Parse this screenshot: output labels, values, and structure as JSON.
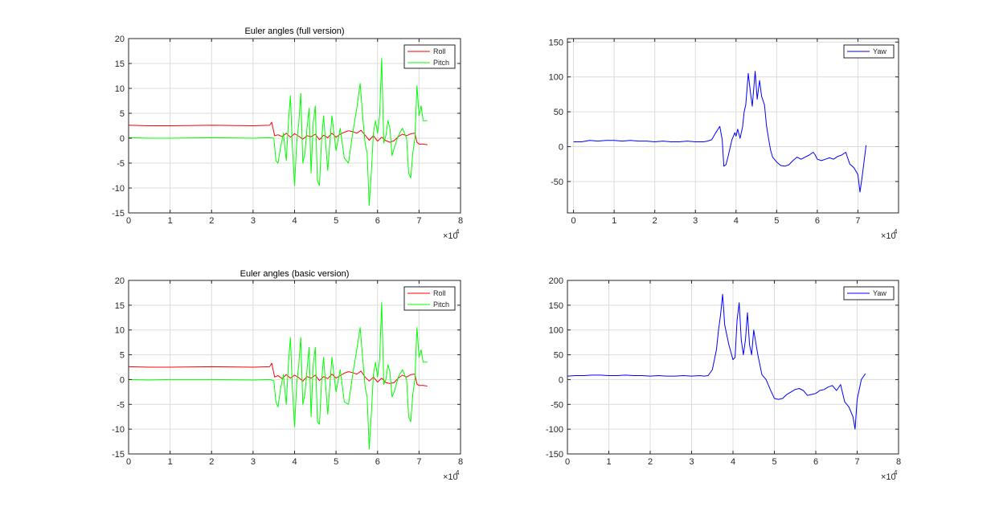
{
  "chart_data": [
    {
      "id": "tl",
      "type": "line",
      "title": "Euler angles (full version)",
      "xlim": [
        0,
        80000
      ],
      "ylim": [
        -15,
        20
      ],
      "xticks": [
        0,
        10000,
        20000,
        30000,
        40000,
        50000,
        60000,
        70000,
        80000
      ],
      "xtick_labels": [
        "0",
        "1",
        "2",
        "3",
        "4",
        "5",
        "6",
        "7",
        "8"
      ],
      "yticks": [
        -15,
        -10,
        -5,
        0,
        5,
        10,
        15,
        20
      ],
      "ytick_labels": [
        "-15",
        "-10",
        "-5",
        "0",
        "5",
        "10",
        "15",
        "20"
      ],
      "x_exponent_base": "×10",
      "x_exponent_power": "4",
      "grid": true,
      "legend_position": "top-right",
      "series": [
        {
          "name": "Roll",
          "color": "#ff0000",
          "x": [
            0,
            5000,
            10000,
            20000,
            30000,
            34000,
            34500,
            35200,
            36000,
            37000,
            38000,
            39000,
            40000,
            41000,
            42000,
            43000,
            44000,
            45000,
            46000,
            47000,
            48000,
            49000,
            50000,
            51000,
            52000,
            53000,
            54000,
            55000,
            56000,
            57000,
            58000,
            59000,
            60000,
            61000,
            62000,
            63000,
            64000,
            65000,
            66000,
            67000,
            68000,
            69000,
            69500,
            70000,
            71000,
            72000
          ],
          "y": [
            2.6,
            2.5,
            2.5,
            2.6,
            2.5,
            2.6,
            3.2,
            0.5,
            0.7,
            0.3,
            1.0,
            0.2,
            0.9,
            0.4,
            -0.2,
            0.5,
            0.3,
            0.8,
            -0.3,
            0.6,
            0.1,
            1.0,
            0.2,
            0.8,
            1.2,
            1.5,
            1.3,
            1.0,
            1.6,
            0.6,
            -0.4,
            0.5,
            -0.6,
            0.2,
            -0.5,
            -0.8,
            -0.5,
            0.3,
            0.8,
            0.5,
            0.9,
            1.0,
            -0.8,
            -1.2,
            -1.2,
            -1.3
          ]
        },
        {
          "name": "Pitch",
          "color": "#00ff00",
          "x": [
            0,
            5000,
            10000,
            20000,
            30000,
            34000,
            35000,
            35500,
            36000,
            36600,
            37300,
            38000,
            38500,
            39000,
            39500,
            40000,
            40500,
            41000,
            41500,
            42000,
            42500,
            43000,
            43500,
            44000,
            44500,
            45000,
            45500,
            46000,
            46500,
            47000,
            48000,
            49000,
            50000,
            51000,
            52000,
            53000,
            54000,
            55000,
            55800,
            56500,
            57000,
            57500,
            58000,
            58500,
            59000,
            59500,
            60000,
            60500,
            61000,
            61500,
            62000,
            62500,
            63000,
            63500,
            64000,
            65000,
            66000,
            67000,
            67500,
            68000,
            68500,
            69000,
            69500,
            70000,
            70500,
            71000,
            72000
          ],
          "y": [
            0.1,
            0.0,
            0.0,
            0.1,
            0.0,
            0.1,
            0.0,
            -4.5,
            -5.0,
            -2.0,
            1.0,
            -4.5,
            3.0,
            8.5,
            -2.0,
            -9.5,
            -1.0,
            3.0,
            9.0,
            -5.0,
            -3.0,
            2.0,
            6.0,
            -7.0,
            3.0,
            6.5,
            -8.5,
            -9.5,
            -0.5,
            4.5,
            -6.5,
            4.5,
            -2.5,
            2.0,
            -4.0,
            -5.0,
            1.0,
            6.0,
            11.0,
            3.5,
            -1.0,
            -3.0,
            -13.5,
            -7.0,
            1.0,
            3.5,
            1.0,
            4.5,
            16.0,
            -1.0,
            0.5,
            3.5,
            2.0,
            -3.5,
            -2.0,
            0.5,
            2.0,
            0.0,
            -7.0,
            -8.0,
            -3.0,
            0.0,
            10.5,
            4.5,
            6.5,
            3.5,
            3.5
          ]
        }
      ]
    },
    {
      "id": "tr",
      "type": "line",
      "title": "",
      "xlim": [
        -1500,
        80000
      ],
      "ylim": [
        -95,
        155
      ],
      "xticks": [
        0,
        10000,
        20000,
        30000,
        40000,
        50000,
        60000,
        70000
      ],
      "xtick_labels": [
        "0",
        "1",
        "2",
        "3",
        "4",
        "5",
        "6",
        "7"
      ],
      "yticks": [
        -50,
        0,
        50,
        100,
        150
      ],
      "ytick_labels": [
        "-50",
        "0",
        "50",
        "100",
        "150"
      ],
      "x_exponent_base": "×10",
      "x_exponent_power": "4",
      "grid": true,
      "legend_position": "top-right",
      "series": [
        {
          "name": "Yaw",
          "color": "#0000ff",
          "x": [
            0,
            2000,
            4000,
            6000,
            8000,
            10000,
            12000,
            14000,
            16000,
            18000,
            20000,
            22000,
            24000,
            26000,
            28000,
            30000,
            32000,
            33000,
            34000,
            35000,
            36000,
            36600,
            37000,
            37500,
            38000,
            39000,
            39700,
            40000,
            40400,
            41000,
            41600,
            42000,
            42400,
            43000,
            43600,
            44000,
            44700,
            45200,
            45800,
            46300,
            47000,
            47500,
            48000,
            48500,
            49000,
            50000,
            51000,
            52000,
            53000,
            54000,
            55000,
            56000,
            57000,
            58000,
            59000,
            59500,
            60000,
            61000,
            62000,
            63000,
            64000,
            65000,
            66000,
            67000,
            68000,
            69000,
            70000,
            70500,
            71000,
            72000
          ],
          "y": [
            7,
            7,
            9,
            8,
            9,
            9,
            8,
            9,
            8,
            8,
            7,
            8,
            7,
            7,
            8,
            7,
            7,
            8,
            10,
            20,
            29,
            10,
            -28,
            -26,
            -15,
            10,
            20,
            15,
            25,
            12,
            28,
            50,
            60,
            105,
            75,
            58,
            108,
            68,
            95,
            72,
            60,
            30,
            12,
            -5,
            -15,
            -22,
            -27,
            -28,
            -26,
            -20,
            -15,
            -18,
            -15,
            -12,
            -8,
            -12,
            -18,
            -20,
            -18,
            -16,
            -18,
            -14,
            -12,
            -8,
            -25,
            -30,
            -40,
            -65,
            -45,
            2
          ]
        }
      ]
    },
    {
      "id": "bl",
      "type": "line",
      "title": "Euler angles (basic version)",
      "xlim": [
        0,
        80000
      ],
      "ylim": [
        -15,
        20
      ],
      "xticks": [
        0,
        10000,
        20000,
        30000,
        40000,
        50000,
        60000,
        70000,
        80000
      ],
      "xtick_labels": [
        "0",
        "1",
        "2",
        "3",
        "4",
        "5",
        "6",
        "7",
        "8"
      ],
      "yticks": [
        -15,
        -10,
        -5,
        0,
        5,
        10,
        15,
        20
      ],
      "ytick_labels": [
        "-15",
        "-10",
        "-5",
        "0",
        "5",
        "10",
        "15",
        "20"
      ],
      "x_exponent_base": "×10",
      "x_exponent_power": "4",
      "grid": true,
      "legend_position": "top-right",
      "series": [
        {
          "name": "Roll",
          "color": "#ff0000",
          "x": [
            0,
            5000,
            10000,
            20000,
            30000,
            34000,
            34500,
            35200,
            36000,
            37000,
            38000,
            39000,
            40000,
            41000,
            42000,
            43000,
            44000,
            45000,
            46000,
            47000,
            48000,
            49000,
            50000,
            51000,
            52000,
            53000,
            54000,
            55000,
            56000,
            57000,
            58000,
            59000,
            60000,
            61000,
            62000,
            63000,
            64000,
            65000,
            66000,
            67000,
            68000,
            69000,
            69500,
            70000,
            71000,
            72000
          ],
          "y": [
            2.6,
            2.5,
            2.5,
            2.6,
            2.5,
            2.6,
            3.3,
            0.5,
            0.8,
            0.2,
            1.0,
            0.3,
            0.9,
            0.4,
            -0.3,
            0.6,
            0.3,
            0.9,
            -0.2,
            0.6,
            0.2,
            1.1,
            0.3,
            0.8,
            1.3,
            1.6,
            1.4,
            1.1,
            1.7,
            0.5,
            -0.3,
            0.5,
            -0.5,
            0.3,
            -0.6,
            -0.8,
            -0.6,
            0.3,
            0.9,
            0.5,
            1.0,
            1.1,
            -0.9,
            -1.2,
            -1.2,
            -1.3
          ]
        },
        {
          "name": "Pitch",
          "color": "#00ff00",
          "x": [
            0,
            5000,
            10000,
            20000,
            30000,
            34000,
            35000,
            35500,
            36000,
            36600,
            37300,
            38000,
            38500,
            39000,
            39500,
            40000,
            40500,
            41000,
            41500,
            42000,
            42500,
            43000,
            43500,
            44000,
            44500,
            45000,
            45500,
            46000,
            46500,
            47000,
            48000,
            49000,
            50000,
            51000,
            52000,
            53000,
            54000,
            55000,
            55800,
            56500,
            57000,
            57500,
            58000,
            58500,
            59000,
            59500,
            60000,
            60500,
            61000,
            61500,
            62000,
            62500,
            63000,
            63500,
            64000,
            65000,
            66000,
            67000,
            67500,
            68000,
            68500,
            69000,
            69500,
            70000,
            70500,
            71000,
            72000
          ],
          "y": [
            0.0,
            -0.1,
            0.0,
            0.0,
            -0.1,
            0.0,
            -0.2,
            -4.5,
            -5.5,
            -2.0,
            1.0,
            -5.0,
            3.0,
            8.5,
            -2.0,
            -9.5,
            -1.0,
            3.0,
            8.5,
            -5.0,
            -3.0,
            2.0,
            6.5,
            -7.5,
            3.0,
            6.5,
            -8.5,
            -9.0,
            -0.5,
            4.5,
            -7.0,
            4.5,
            -2.5,
            2.0,
            -4.5,
            -5.0,
            1.0,
            6.0,
            10.5,
            3.5,
            -1.5,
            -3.5,
            -14.0,
            -7.0,
            1.0,
            3.5,
            0.5,
            4.0,
            15.5,
            -1.0,
            0.0,
            3.0,
            1.5,
            -3.5,
            -2.5,
            0.5,
            2.0,
            0.0,
            -7.5,
            -8.5,
            -3.0,
            0.0,
            10.5,
            4.5,
            6.0,
            3.5,
            3.5
          ]
        }
      ]
    },
    {
      "id": "br",
      "type": "line",
      "title": "",
      "xlim": [
        0,
        80000
      ],
      "ylim": [
        -150,
        200
      ],
      "xticks": [
        0,
        10000,
        20000,
        30000,
        40000,
        50000,
        60000,
        70000,
        80000
      ],
      "xtick_labels": [
        "0",
        "1",
        "2",
        "3",
        "4",
        "5",
        "6",
        "7",
        "8"
      ],
      "yticks": [
        -150,
        -100,
        -50,
        0,
        50,
        100,
        150,
        200
      ],
      "ytick_labels": [
        "-150",
        "-100",
        "-50",
        "0",
        "50",
        "100",
        "150",
        "200"
      ],
      "x_exponent_base": "×10",
      "x_exponent_power": "4",
      "grid": true,
      "legend_position": "top-right",
      "series": [
        {
          "name": "Yaw",
          "color": "#0000ff",
          "x": [
            0,
            2000,
            4000,
            6000,
            8000,
            10000,
            12000,
            14000,
            16000,
            18000,
            20000,
            22000,
            24000,
            26000,
            28000,
            30000,
            32000,
            33000,
            34000,
            35000,
            36000,
            36500,
            37000,
            37500,
            38000,
            39000,
            40000,
            40500,
            41000,
            41500,
            42000,
            42500,
            43000,
            43500,
            44000,
            44500,
            45000,
            45500,
            46000,
            47000,
            48000,
            49000,
            50000,
            51000,
            52000,
            53000,
            54000,
            55000,
            56000,
            57000,
            58000,
            59000,
            60000,
            61000,
            62000,
            63000,
            64000,
            65000,
            66000,
            67000,
            68000,
            69000,
            69500,
            70000,
            71000,
            72000
          ],
          "y": [
            7,
            8,
            8,
            9,
            9,
            8,
            8,
            9,
            8,
            8,
            7,
            8,
            7,
            7,
            8,
            7,
            8,
            7,
            8,
            20,
            60,
            100,
            130,
            172,
            110,
            70,
            40,
            45,
            120,
            155,
            80,
            50,
            80,
            135,
            70,
            50,
            100,
            75,
            50,
            10,
            0,
            -20,
            -38,
            -40,
            -38,
            -30,
            -25,
            -20,
            -18,
            -22,
            -32,
            -30,
            -28,
            -22,
            -20,
            -15,
            -12,
            -22,
            -10,
            -45,
            -55,
            -75,
            -100,
            -40,
            0,
            12
          ]
        }
      ]
    }
  ]
}
